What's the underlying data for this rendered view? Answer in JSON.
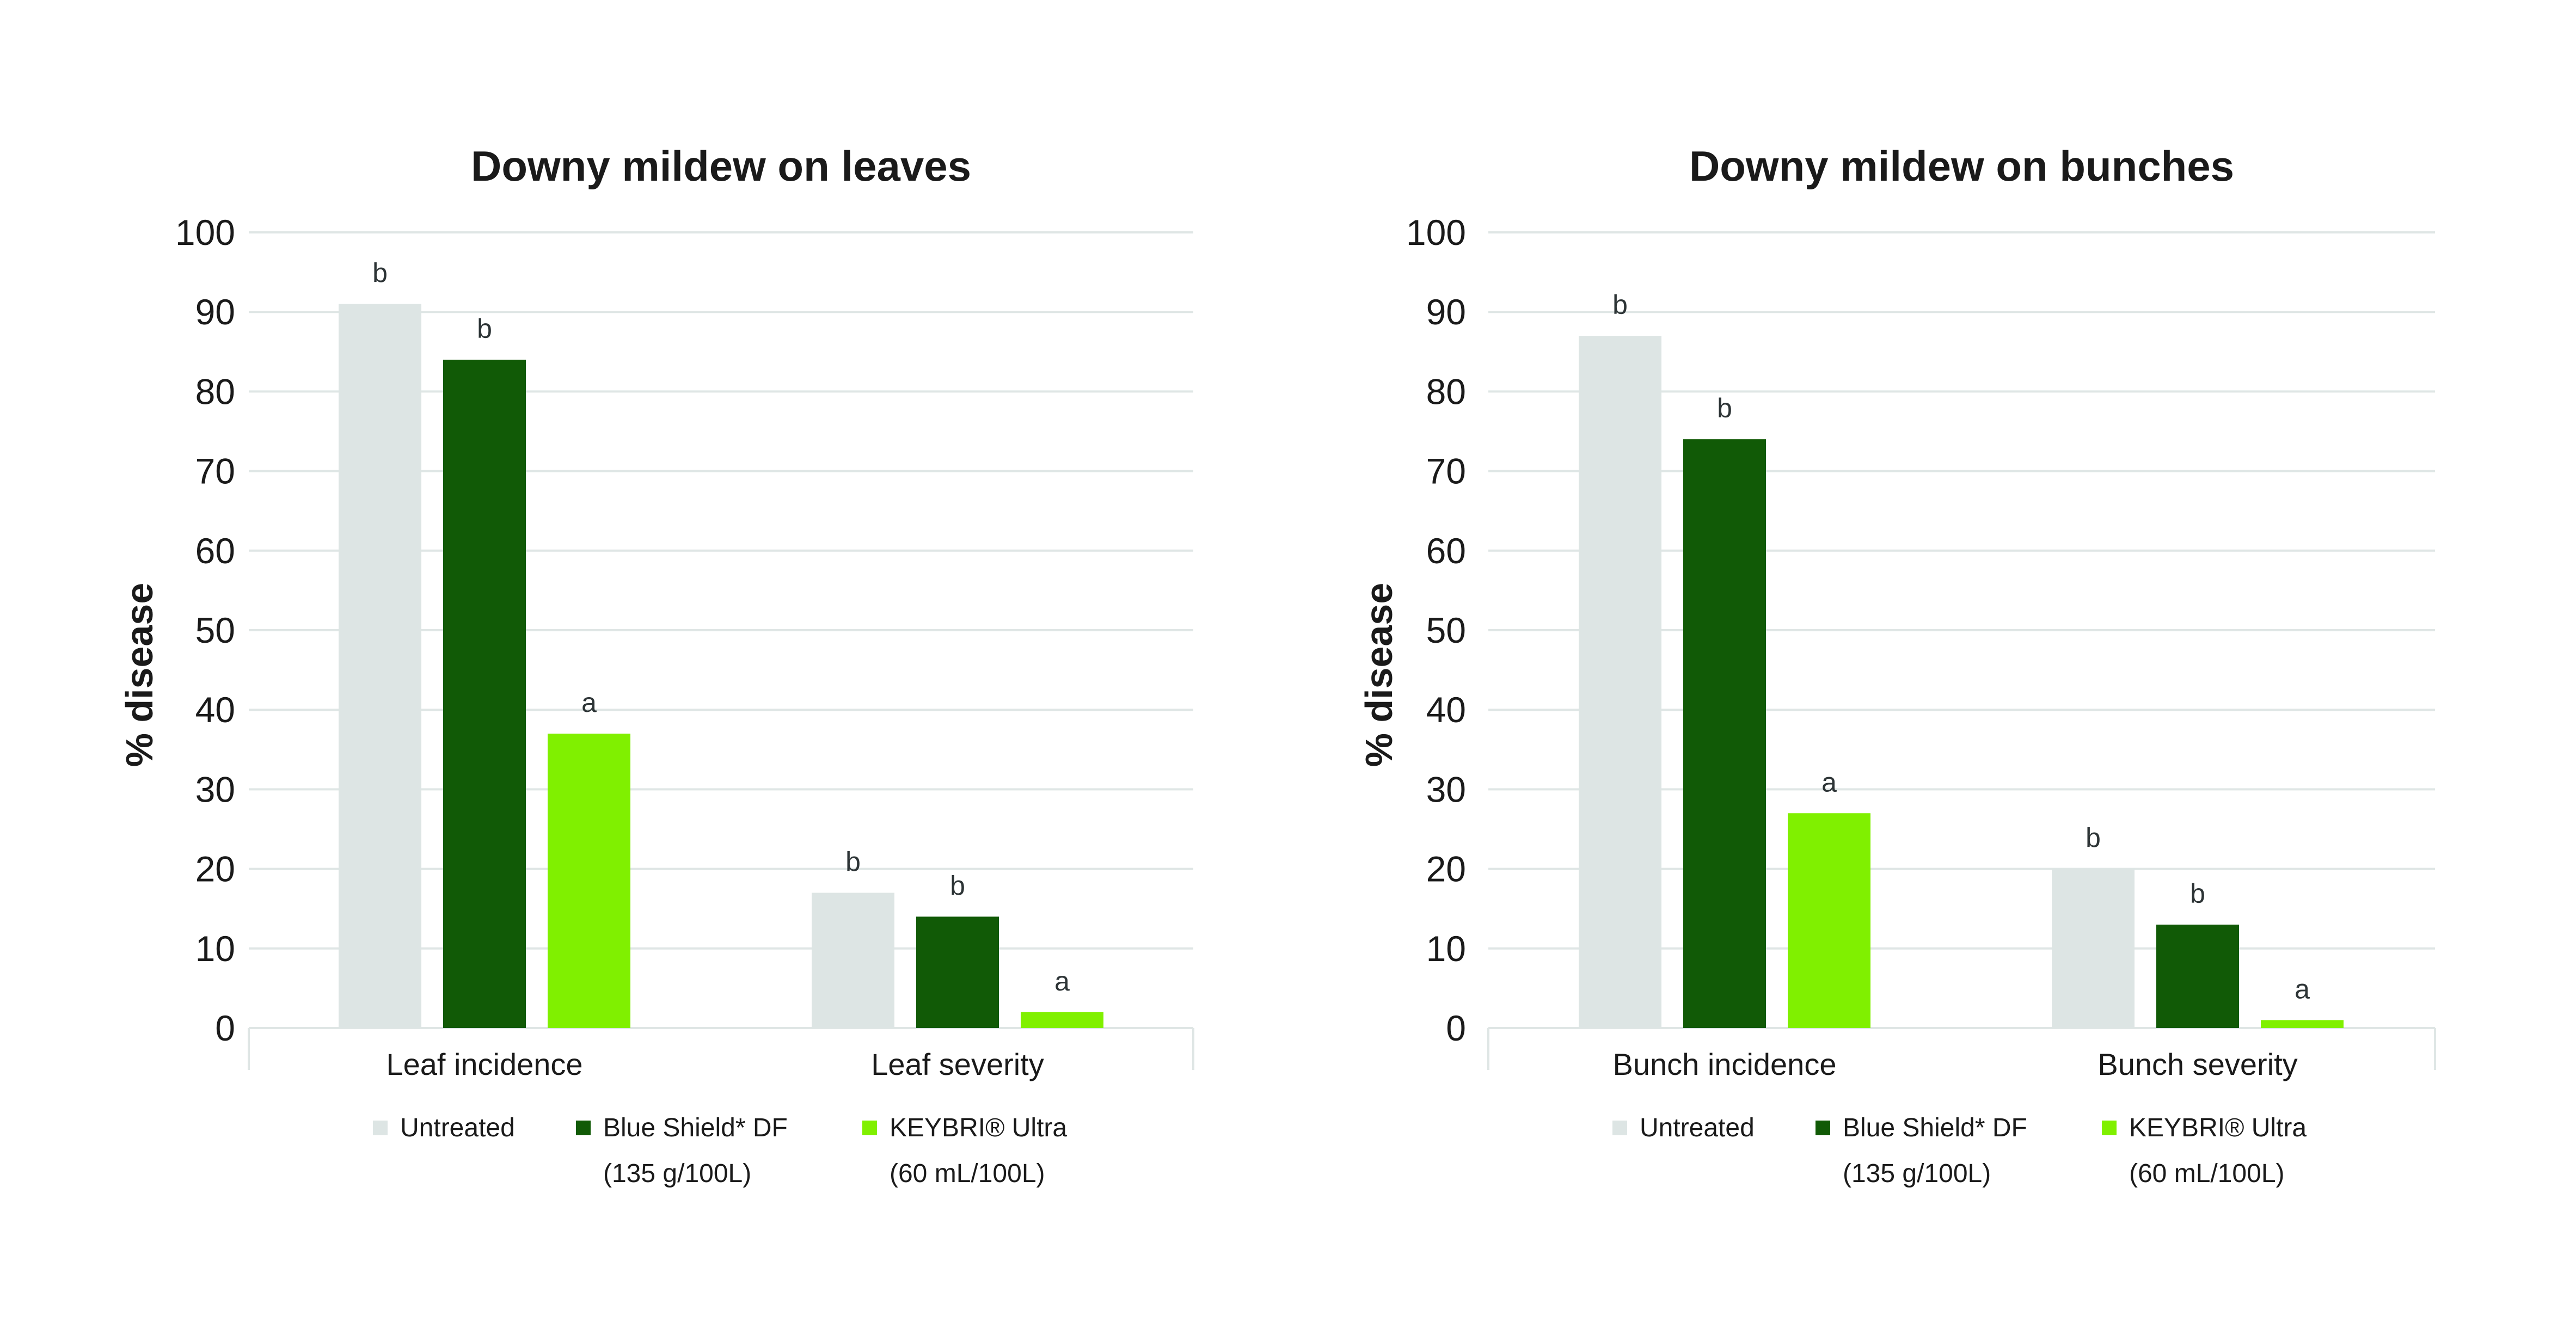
{
  "chart_data": [
    {
      "type": "bar",
      "title": "Downy mildew on leaves",
      "ylabel": "% disease",
      "xlabel": "",
      "ylim": [
        0,
        100
      ],
      "yticks": [
        "0",
        "10",
        "20",
        "30",
        "40",
        "50",
        "60",
        "70",
        "80",
        "90",
        "100"
      ],
      "grid": true,
      "categories": [
        "Leaf incidence",
        "Leaf severity"
      ],
      "series": [
        {
          "name": "Untreated",
          "sublabel": "",
          "color": "#dde5e4",
          "values": [
            91,
            17
          ],
          "letters": [
            "b",
            "b"
          ]
        },
        {
          "name": "Blue Shield* DF",
          "sublabel": "(135 g/100L)",
          "color": "#115a06",
          "values": [
            84,
            14
          ],
          "letters": [
            "b",
            "b"
          ]
        },
        {
          "name": "KEYBRI® Ultra",
          "sublabel": "(60 mL/100L)",
          "color": "#80f000",
          "values": [
            37,
            2
          ],
          "letters": [
            "a",
            "a"
          ]
        }
      ],
      "legend_position": "bottom"
    },
    {
      "type": "bar",
      "title": "Downy mildew on bunches",
      "ylabel": "% disease",
      "xlabel": "",
      "ylim": [
        0,
        100
      ],
      "yticks": [
        "0",
        "10",
        "20",
        "30",
        "40",
        "50",
        "60",
        "70",
        "80",
        "90",
        "100"
      ],
      "grid": true,
      "categories": [
        "Bunch incidence",
        "Bunch severity"
      ],
      "series": [
        {
          "name": "Untreated",
          "sublabel": "",
          "color": "#dde5e4",
          "values": [
            87,
            20
          ],
          "letters": [
            "b",
            "b"
          ]
        },
        {
          "name": "Blue Shield* DF",
          "sublabel": "(135 g/100L)",
          "color": "#115a06",
          "values": [
            74,
            13
          ],
          "letters": [
            "b",
            "b"
          ]
        },
        {
          "name": "KEYBRI® Ultra",
          "sublabel": "(60 mL/100L)",
          "color": "#80f000",
          "values": [
            27,
            1
          ],
          "letters": [
            "a",
            "a"
          ]
        }
      ],
      "legend_position": "bottom"
    }
  ],
  "colors": {
    "gridline": "#dfe6e5",
    "text": "#1a1a1a",
    "letters": "#2d3436"
  }
}
